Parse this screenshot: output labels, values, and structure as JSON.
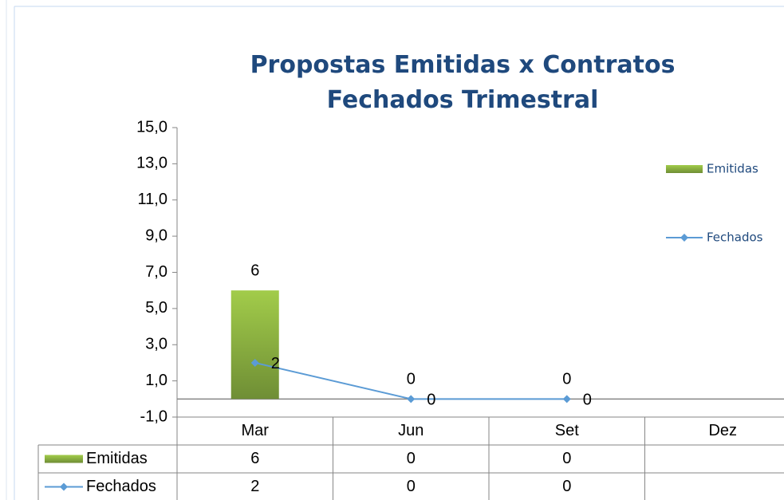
{
  "chart_data": {
    "type": "bar-line",
    "title": "Propostas Emitidas x Contratos Fechados Trimestral",
    "categories": [
      "Mar",
      "Jun",
      "Set",
      "Dez"
    ],
    "series": [
      {
        "name": "Emitidas",
        "type": "bar",
        "color": "#8db43e",
        "values": [
          6,
          0,
          0,
          null
        ]
      },
      {
        "name": "Fechados",
        "type": "line",
        "color": "#5b9bd5",
        "values": [
          2,
          0,
          0,
          null
        ]
      }
    ],
    "ylim": [
      -1,
      15
    ],
    "yticks": [
      {
        "value": -1,
        "label": "-1,0"
      },
      {
        "value": 1,
        "label": "1,0"
      },
      {
        "value": 3,
        "label": "3,0"
      },
      {
        "value": 5,
        "label": "5,0"
      },
      {
        "value": 7,
        "label": "7,0"
      },
      {
        "value": 9,
        "label": "9,0"
      },
      {
        "value": 11,
        "label": "11,0"
      },
      {
        "value": 13,
        "label": "13,0"
      },
      {
        "value": 15,
        "label": "15,0"
      }
    ],
    "legend": "right",
    "data_table": true
  }
}
